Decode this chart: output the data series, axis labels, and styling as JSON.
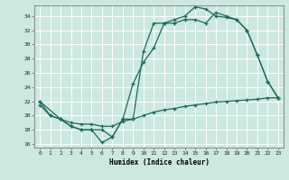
{
  "title": "",
  "xlabel": "Humidex (Indice chaleur)",
  "bg_color": "#cce8e0",
  "line_color": "#1a6b5a",
  "grid_color": "#ffffff",
  "xlim": [
    -0.5,
    23.5
  ],
  "ylim": [
    15.5,
    35.5
  ],
  "xticks": [
    0,
    1,
    2,
    3,
    4,
    5,
    6,
    7,
    8,
    9,
    10,
    11,
    12,
    13,
    14,
    15,
    16,
    17,
    18,
    19,
    20,
    21,
    22,
    23
  ],
  "yticks": [
    16,
    18,
    20,
    22,
    24,
    26,
    28,
    30,
    32,
    34
  ],
  "line1_x": [
    0,
    1,
    2,
    3,
    4,
    5,
    6,
    7,
    8,
    9,
    10,
    11,
    12,
    13,
    14,
    15,
    16,
    17,
    18,
    19,
    20,
    21,
    22,
    23
  ],
  "line1_y": [
    22,
    20,
    19.5,
    18.5,
    18.0,
    18.0,
    16.2,
    17.0,
    19.5,
    19.5,
    29.0,
    33.0,
    33.0,
    33.5,
    34.0,
    35.3,
    35.0,
    34.0,
    33.8,
    33.5,
    32.0,
    28.5,
    24.8,
    22.5
  ],
  "line2_x": [
    0,
    2,
    3,
    4,
    5,
    6,
    7,
    8,
    9,
    10,
    11,
    12,
    13,
    14,
    15,
    16,
    17,
    18,
    19,
    20,
    21,
    22,
    23
  ],
  "line2_y": [
    22,
    19.5,
    18.5,
    18.0,
    18.0,
    18.0,
    17.0,
    19.5,
    24.5,
    27.5,
    29.5,
    33.0,
    33.0,
    33.5,
    33.5,
    33.0,
    34.5,
    34.0,
    33.5,
    32.0,
    28.5,
    24.8,
    22.5
  ],
  "line3_x": [
    0,
    1,
    2,
    3,
    4,
    5,
    6,
    7,
    8,
    9,
    10,
    11,
    12,
    13,
    14,
    15,
    16,
    17,
    18,
    19,
    20,
    21,
    22,
    23
  ],
  "line3_y": [
    21.5,
    20.0,
    19.5,
    19.0,
    18.8,
    18.8,
    18.5,
    18.5,
    19.2,
    19.5,
    20.0,
    20.5,
    20.8,
    21.0,
    21.3,
    21.5,
    21.7,
    21.9,
    22.0,
    22.1,
    22.2,
    22.3,
    22.5,
    22.5
  ]
}
